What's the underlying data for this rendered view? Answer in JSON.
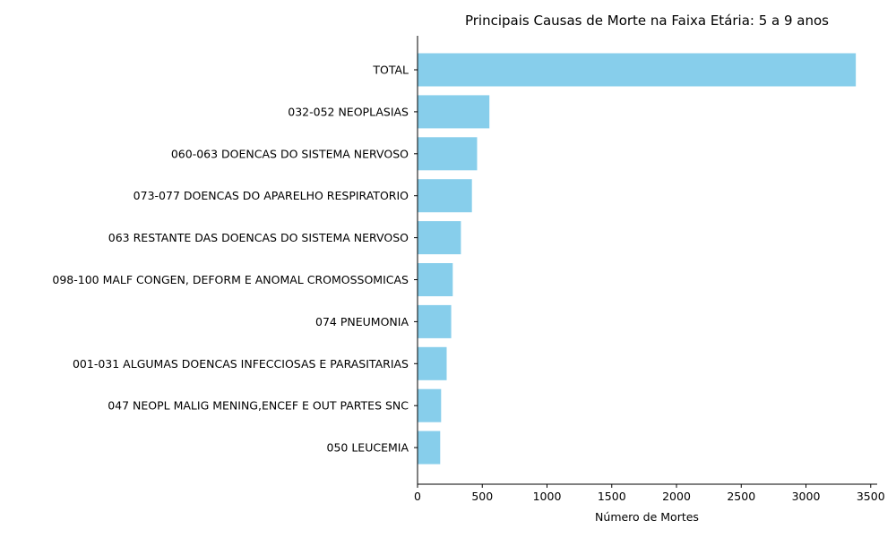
{
  "chart_data": {
    "type": "bar",
    "orientation": "horizontal",
    "title": "Principais Causas de Morte na Faixa Etária: 5 a 9 anos",
    "xlabel": "Número de Mortes",
    "ylabel": "",
    "xlim": [
      0,
      3550
    ],
    "x_ticks": [
      "0",
      "500",
      "1000",
      "1500",
      "2000",
      "2500",
      "3000",
      "3500"
    ],
    "x_tick_values": [
      0,
      500,
      1000,
      1500,
      2000,
      2500,
      3000,
      3500
    ],
    "grid": false,
    "legend": "none",
    "bar_color": "#87CEEB",
    "categories": [
      "TOTAL",
      "032-052 NEOPLASIAS",
      "060-063 DOENCAS DO SISTEMA NERVOSO",
      "073-077 DOENCAS DO APARELHO RESPIRATORIO",
      "063 RESTANTE DAS DOENCAS DO SISTEMA NERVOSO",
      "098-100 MALF CONGEN, DEFORM E ANOMAL CROMOSSOMICAS",
      "074 PNEUMONIA",
      "001-031 ALGUMAS DOENCAS INFECCIOSAS E PARASITARIAS",
      "047 NEOPL MALIG MENING,ENCEF E OUT PARTES SNC",
      "050 LEUCEMIA"
    ],
    "values": [
      3385,
      555,
      460,
      420,
      335,
      272,
      260,
      225,
      182,
      175
    ]
  }
}
